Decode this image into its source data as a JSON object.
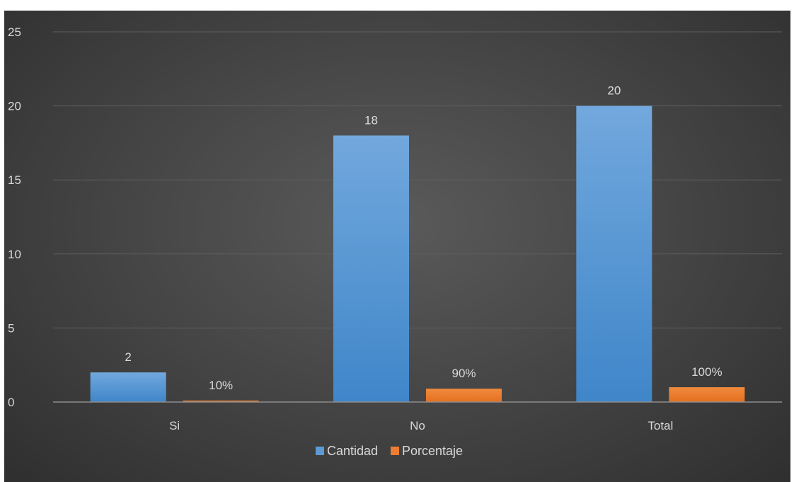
{
  "chart_data": {
    "type": "bar",
    "categories": [
      "Si",
      "No",
      "Total"
    ],
    "series": [
      {
        "name": "Cantidad",
        "values": [
          2,
          18,
          20
        ],
        "labels": [
          "2",
          "18",
          "20"
        ],
        "color": "#5b9bd5"
      },
      {
        "name": "Porcentaje",
        "values": [
          0.1,
          0.9,
          1.0
        ],
        "labels": [
          "10%",
          "90%",
          "100%"
        ],
        "color": "#ed7d31"
      }
    ],
    "title": "",
    "xlabel": "",
    "ylabel": "",
    "ylim": [
      0,
      25
    ],
    "yticks": [
      0,
      5,
      10,
      15,
      20,
      25
    ],
    "grid": true,
    "legend_position": "bottom",
    "background_color": "#474747",
    "gridline_color": "#5e5e5e",
    "text_color": "#d9d9d9"
  }
}
